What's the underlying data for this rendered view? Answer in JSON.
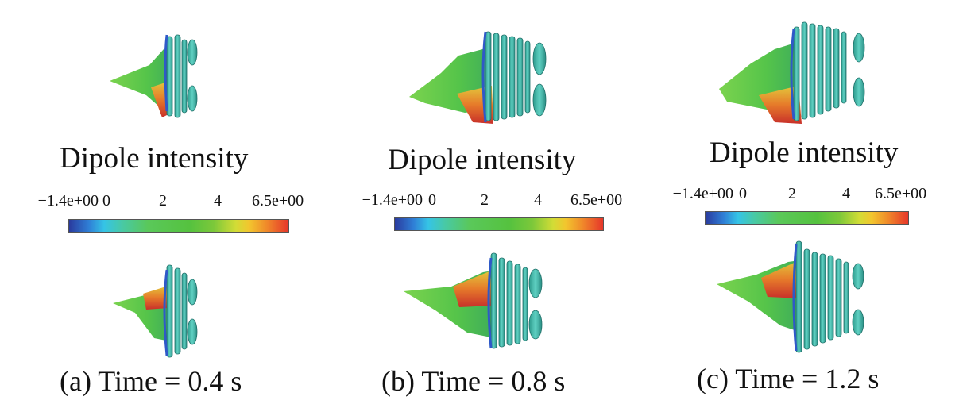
{
  "colors": {
    "surface_green": "#5cc84a",
    "surface_teal": "#3fb7b0",
    "edge_blue": "#2f59c8",
    "hot_red": "#d4302a",
    "warm_yellow": "#e3c83c"
  },
  "colorbar": {
    "title": "Dipole intensity",
    "ticks": [
      "−1.4e+00",
      "0",
      "2",
      "4",
      "6.5e+00"
    ],
    "min": -1.4,
    "max": 6.5
  },
  "panels": [
    {
      "caption": "(a) Time = 0.4 s"
    },
    {
      "caption": "(b) Time = 0.8 s"
    },
    {
      "caption": "(c) Time = 1.2 s"
    }
  ]
}
